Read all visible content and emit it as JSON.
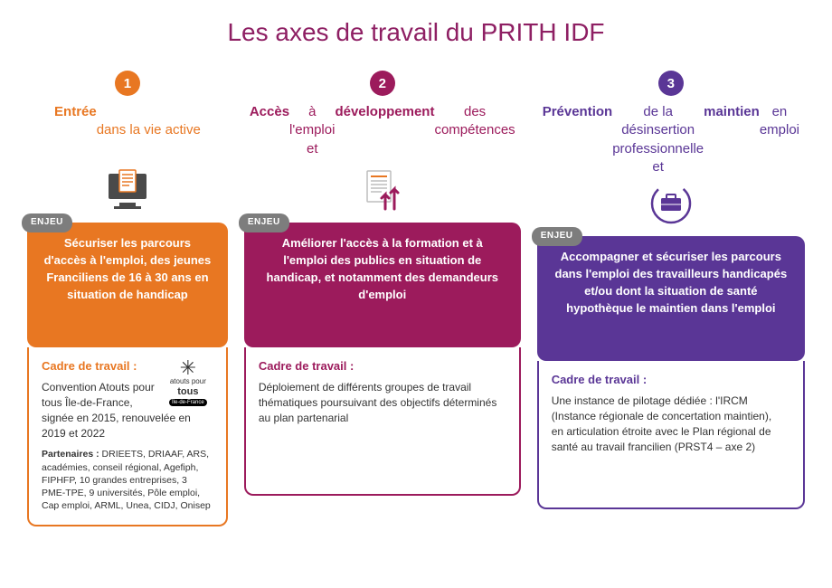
{
  "title": "Les axes de travail du PRITH IDF",
  "title_color": "#8e1f63",
  "enjeu_label": "ENJEU",
  "enjeu_tag_bg": "#7d7d7d",
  "columns": [
    {
      "number": "1",
      "accent": "#e87722",
      "heading_html": "<b>Entrée</b><br>dans la vie active",
      "icon": "computer-doc",
      "enjeu_text": "Sécuriser les parcours d'accès à l'emploi, des jeunes Franciliens de 16 à 30 ans en situation de handicap",
      "cadre_title": "Cadre de travail :",
      "cadre_body": "Convention Atouts pour tous Île-de-France, signée en 2015, renouvelée en 2019 et 2022",
      "logo_top": "atouts pour",
      "logo_main": "tous",
      "logo_sub": "Île-de-France",
      "partners_label": "Partenaires :",
      "partners": " DRIEETS, DRIAAF, ARS, académies, conseil régional, Agefiph, FIPHFP, 10 grandes entreprises, 3 PME-TPE, 9 universités, Pôle emploi, Cap emploi, ARML, Unea, CIDJ, Onisep"
    },
    {
      "number": "2",
      "accent": "#9c1b5c",
      "heading_html": "<b>Accès</b> à l'emploi<br>et <b>développement</b> des compétences",
      "icon": "doc-arrows",
      "enjeu_text": "Améliorer l'accès à la formation et à l'emploi des publics en situation de handicap, et notamment des demandeurs d'emploi",
      "cadre_title": "Cadre de travail :",
      "cadre_body": "Déploiement de différents groupes de travail thématiques poursuivant des objectifs déterminés au plan partenarial"
    },
    {
      "number": "3",
      "accent": "#5a3696",
      "heading_html": "<b>Prévention</b> de la désinsertion professionnelle<br>et <b>maintien</b> en emploi",
      "icon": "briefcase-circle",
      "enjeu_text": "Accompagner et sécuriser les parcours dans l'emploi des travailleurs handicapés et/ou dont la situation de santé hypothèque le maintien dans l'emploi",
      "cadre_title": "Cadre de travail :",
      "cadre_body": "Une instance de pilotage dédiée : l'IRCM (Instance régionale de concertation maintien),\nen articulation étroite avec le Plan régional de santé au travail francilien (PRST4 – axe 2)"
    }
  ]
}
